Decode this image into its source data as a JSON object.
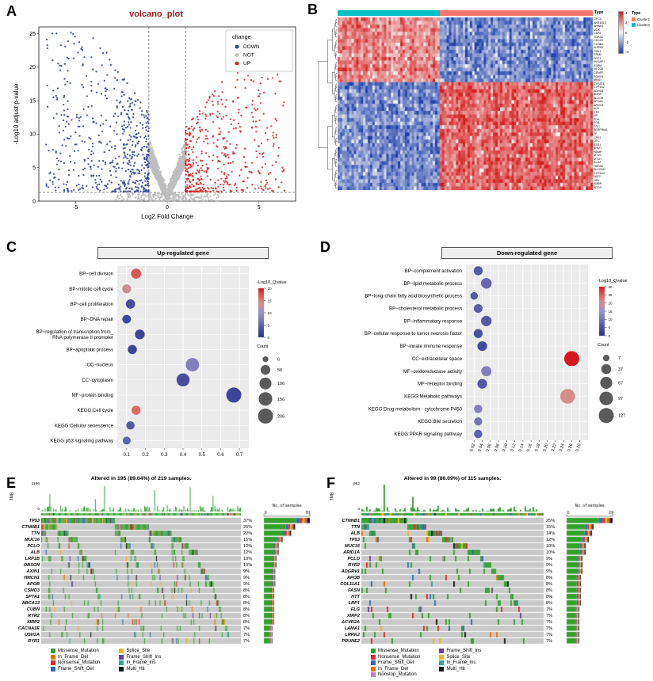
{
  "chart_data": [
    {
      "panel_label": "A",
      "type": "scatter",
      "title": "volcano_plot",
      "title_color": "#9E1B1B",
      "xlabel": "Log2 Fold Change",
      "ylabel": "-Log10 adjust p-value",
      "xlim": [
        -7,
        7
      ],
      "ylim": [
        0,
        26
      ],
      "x_ticks": [
        -5,
        0,
        5
      ],
      "y_ticks": [
        0,
        5,
        10,
        15,
        20,
        25
      ],
      "fc_cutoff": 1,
      "p_cutoff": 1.3,
      "legend_title": "change",
      "groups": [
        {
          "label": "DOWN",
          "color": "#2B3F93",
          "n": 560
        },
        {
          "label": "NOT",
          "color": "#BDBDBD",
          "n": 2300
        },
        {
          "label": "UP",
          "color": "#D62020",
          "n": 470
        }
      ]
    },
    {
      "panel_label": "B",
      "type": "heatmap",
      "annotation_label": "Type",
      "clusters": [
        {
          "label": "Cluster1",
          "color": "#F8766D",
          "frac": 0.6
        },
        {
          "label": "Cluster2",
          "color": "#00BFC4",
          "frac": 0.4
        }
      ],
      "scale_ticks": [
        4,
        2,
        0,
        -2,
        -4
      ],
      "colors": {
        "high": "#D61F1F",
        "mid": "#F5F5F5",
        "low": "#1C3FA8"
      },
      "n_rows": 48,
      "n_cols": 110,
      "split_col_frac": 0.4,
      "split_row": 18,
      "row_labels": [
        "GPC3",
        "AKR1B10",
        "SPINK1",
        "MDK",
        "CAP2",
        "TOP2A",
        "CDC20",
        "CCNB1",
        "AURKA",
        "CDK1",
        "RRM2",
        "PRC1",
        "NUSAP1",
        "ASPM",
        "KIF20A",
        "CENPF",
        "FOXM1",
        "MKI67",
        "CYP2E1",
        "CYP1A2",
        "ADH1B",
        "ADH4",
        "ALDOB",
        "APOA1",
        "APOC3",
        "ALB",
        "TTR",
        "HP",
        "FGA",
        "FGB",
        "FGG",
        "SERPINA1",
        "TF",
        "CPS1",
        "OTC",
        "ASS1",
        "BHMT",
        "HAMP",
        "MT1G",
        "MT1H",
        "GLS2",
        "HGFAC",
        "SLC22A1",
        "CYP3A4",
        "NAT2",
        "HPX",
        "AMBP",
        "APOF"
      ]
    },
    {
      "panel_label": "C",
      "type": "scatter",
      "title": "Up-regulated gene",
      "x_ticks": [
        0.1,
        0.2,
        0.3,
        0.4,
        0.5,
        0.6,
        0.7
      ],
      "xlim": [
        0.05,
        0.75
      ],
      "color_legend": {
        "title": "-Log10_Qvalue",
        "max": 20,
        "ticks": [
          20,
          15,
          10,
          5,
          0
        ]
      },
      "size_legend": {
        "title": "Count",
        "values": [
          6,
          56,
          106,
          156,
          206
        ],
        "max": 206
      },
      "points": [
        {
          "label": "BP~cell division",
          "x": 0.15,
          "count": 62,
          "qvalue": 17
        },
        {
          "label": "BP~mitotic cell cycle",
          "x": 0.1,
          "count": 40,
          "qvalue": 13
        },
        {
          "label": "BP~cell proliferation",
          "x": 0.12,
          "count": 48,
          "qvalue": 3
        },
        {
          "label": "BP~DNA repair",
          "x": 0.1,
          "count": 36,
          "qvalue": 2
        },
        {
          "label": "BP~regulation of transcription from_\nRNA polymerase II promoter",
          "x": 0.17,
          "count": 56,
          "qvalue": 2
        },
        {
          "label": "BP~apoptotic process",
          "x": 0.13,
          "count": 44,
          "qvalue": 2
        },
        {
          "label": "CC~nucleus",
          "x": 0.45,
          "count": 150,
          "qvalue": 8
        },
        {
          "label": "CC~cytoplasm",
          "x": 0.4,
          "count": 140,
          "qvalue": 3
        },
        {
          "label": "MF~protein binding",
          "x": 0.67,
          "count": 206,
          "qvalue": 2
        },
        {
          "label": "KEGG:Cell cycle",
          "x": 0.15,
          "count": 42,
          "qvalue": 16
        },
        {
          "label": "KEGG:Cellular senescence",
          "x": 0.12,
          "count": 32,
          "qvalue": 4
        },
        {
          "label": "KEGG:p53 signaling pathway",
          "x": 0.1,
          "count": 26,
          "qvalue": 5
        }
      ]
    },
    {
      "panel_label": "D",
      "type": "scatter",
      "title": "Down-regulated gene",
      "x_ticks": [
        0.02,
        0.04,
        0.06,
        0.08,
        0.1,
        0.12,
        0.14,
        0.16,
        0.18,
        0.2,
        0.22,
        0.24,
        0.26,
        0.28
      ],
      "xlim": [
        0.0,
        0.3
      ],
      "color_legend": {
        "title": "-Log10_Qvalue",
        "max": 30,
        "ticks": [
          30,
          25,
          20,
          15,
          10,
          5,
          0
        ]
      },
      "size_legend": {
        "title": "Count",
        "values": [
          7,
          37,
          67,
          97,
          127
        ],
        "max": 127
      },
      "points": [
        {
          "label": "BP~complement activation",
          "x": 0.03,
          "count": 26,
          "qvalue": 6
        },
        {
          "label": "BP~lipid metabolic process",
          "x": 0.05,
          "count": 46,
          "qvalue": 8
        },
        {
          "label": "BP~long-chain fatty acid biosynthetic process",
          "x": 0.02,
          "count": 13,
          "qvalue": 6
        },
        {
          "label": "BP~cholesterol metabolic process",
          "x": 0.03,
          "count": 24,
          "qvalue": 7
        },
        {
          "label": "BP~inflammatory response",
          "x": 0.05,
          "count": 44,
          "qvalue": 6
        },
        {
          "label": "BP~cellular response to tumor necrosis factor",
          "x": 0.03,
          "count": 26,
          "qvalue": 5
        },
        {
          "label": "BP~innate immune response",
          "x": 0.04,
          "count": 34,
          "qvalue": 4
        },
        {
          "label": "CC~extracellular space",
          "x": 0.26,
          "count": 127,
          "qvalue": 30
        },
        {
          "label": "MF~oxidoreductase activity",
          "x": 0.05,
          "count": 40,
          "qvalue": 12
        },
        {
          "label": "MF~receptor binding",
          "x": 0.04,
          "count": 34,
          "qvalue": 6
        },
        {
          "label": "KEGG:Metabolic pathways",
          "x": 0.25,
          "count": 120,
          "qvalue": 21
        },
        {
          "label": "KEGG:Drug metabolism - cytochrome P450",
          "x": 0.03,
          "count": 20,
          "qvalue": 12
        },
        {
          "label": "KEGG:Bile secretion",
          "x": 0.03,
          "count": 18,
          "qvalue": 10
        },
        {
          "label": "KEGG:PPAR signaling pathway",
          "x": 0.03,
          "count": 20,
          "qvalue": 7
        }
      ]
    },
    {
      "panel_label": "E",
      "type": "oncoplot",
      "title": "Altered in 195 (89.04%) of 219 samples.",
      "tmb_label": "TMB",
      "tmb_max": "1196",
      "tmb_min": "0",
      "n_samples": 219,
      "right_axis": {
        "label": "No. of samples",
        "min": 0,
        "max": 81
      },
      "genes": [
        {
          "name": "TP53",
          "pct": 37
        },
        {
          "name": "CTNNB1",
          "pct": 25
        },
        {
          "name": "TTN",
          "pct": 22
        },
        {
          "name": "MUC16",
          "pct": 15
        },
        {
          "name": "PCLO",
          "pct": 12
        },
        {
          "name": "ALB",
          "pct": 12
        },
        {
          "name": "LRP1B",
          "pct": 10
        },
        {
          "name": "OBSCN",
          "pct": 10
        },
        {
          "name": "AXIN1",
          "pct": 9
        },
        {
          "name": "HMCN1",
          "pct": 9
        },
        {
          "name": "APOB",
          "pct": 9
        },
        {
          "name": "CSMD3",
          "pct": 8
        },
        {
          "name": "SPTA1",
          "pct": 8
        },
        {
          "name": "ABCA13",
          "pct": 8
        },
        {
          "name": "CUBN",
          "pct": 8
        },
        {
          "name": "RYR2",
          "pct": 8
        },
        {
          "name": "XIRP2",
          "pct": 8
        },
        {
          "name": "CACNA1E",
          "pct": 7
        },
        {
          "name": "USH2A",
          "pct": 7
        },
        {
          "name": "RYR1",
          "pct": 7
        }
      ],
      "legend": [
        {
          "label": "Missense_Mutation",
          "color": "#33A02C"
        },
        {
          "label": "Splice_Site",
          "color": "#F5B317"
        },
        {
          "label": "In_Frame_Del",
          "color": "#E76F00"
        },
        {
          "label": "Frame_Shift_Ins",
          "color": "#6A3D9A"
        },
        {
          "label": "Nonsense_Mutation",
          "color": "#DC2A2A"
        },
        {
          "label": "In_Frame_Ins",
          "color": "#2AA8A0"
        },
        {
          "label": "Frame_Shift_Del",
          "color": "#2B6CB0"
        },
        {
          "label": "Multi_Hit",
          "color": "#141414"
        }
      ]
    },
    {
      "panel_label": "F",
      "type": "oncoplot",
      "title": "Altered in 99 (86.09%) of 115 samples.",
      "tmb_label": "TMB",
      "tmb_max": "952",
      "tmb_min": "0",
      "n_samples": 115,
      "right_axis": {
        "label": "No. of samples",
        "min": 0,
        "max": 29
      },
      "genes": [
        {
          "name": "CTNNB1",
          "pct": 25
        },
        {
          "name": "TTN",
          "pct": 15
        },
        {
          "name": "ALB",
          "pct": 14
        },
        {
          "name": "TP53",
          "pct": 12
        },
        {
          "name": "MUC16",
          "pct": 10
        },
        {
          "name": "ARID1A",
          "pct": 10
        },
        {
          "name": "PCLO",
          "pct": 9
        },
        {
          "name": "RYR2",
          "pct": 9
        },
        {
          "name": "ADGRV1",
          "pct": 9
        },
        {
          "name": "APOB",
          "pct": 8
        },
        {
          "name": "COL11A1",
          "pct": 8
        },
        {
          "name": "FASN",
          "pct": 8
        },
        {
          "name": "HTT",
          "pct": 8
        },
        {
          "name": "LRP1",
          "pct": 8
        },
        {
          "name": "FLG",
          "pct": 7
        },
        {
          "name": "XIRP2",
          "pct": 7
        },
        {
          "name": "ACVR2A",
          "pct": 7
        },
        {
          "name": "LAMA1",
          "pct": 7
        },
        {
          "name": "LRRK2",
          "pct": 7
        },
        {
          "name": "PRUNE2",
          "pct": 7
        }
      ],
      "legend": [
        {
          "label": "Missense_Mutation",
          "color": "#33A02C"
        },
        {
          "label": "Frame_Shift_Ins",
          "color": "#6A3D9A"
        },
        {
          "label": "Nonsense_Mutation",
          "color": "#DC2A2A"
        },
        {
          "label": "Splice_Site",
          "color": "#F5B317"
        },
        {
          "label": "Frame_Shift_Del",
          "color": "#2B6CB0"
        },
        {
          "label": "In_Frame_Ins",
          "color": "#2AA8A0"
        },
        {
          "label": "In_Frame_Del",
          "color": "#E76F00"
        },
        {
          "label": "Multi_Hit",
          "color": "#141414"
        },
        {
          "label": "Nonstop_Mutation",
          "color": "#BC80BD"
        }
      ]
    }
  ]
}
